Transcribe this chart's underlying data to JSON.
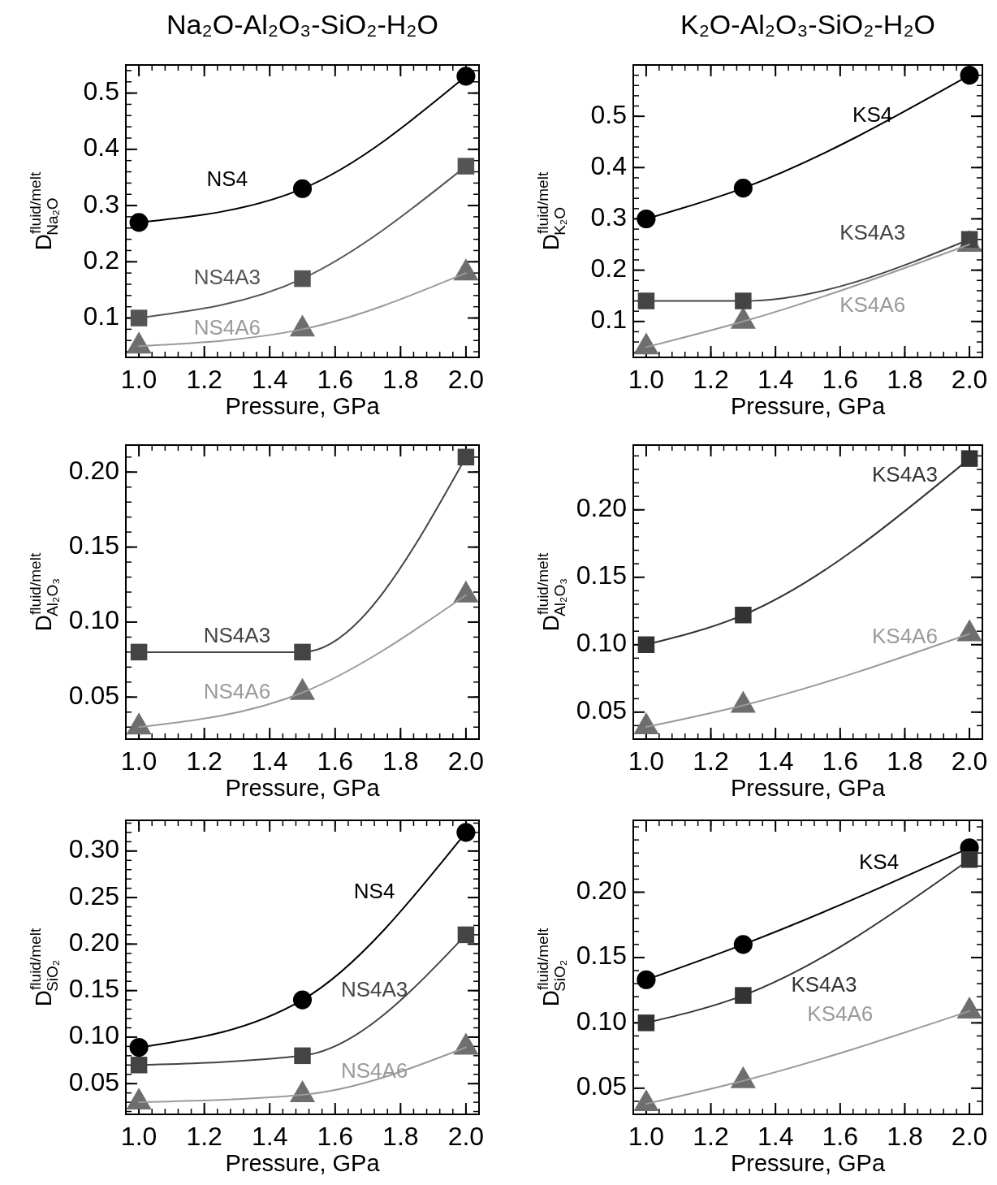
{
  "chart_data": [
    {
      "type": "line",
      "title": "Na₂O-Al₂O₃-SiO₂-H₂O",
      "xlabel": "Pressure, GPa",
      "ylabel": "D$^{fluid/melt}$$_{Na₂O}$",
      "x": [
        1.0,
        1.5,
        2.0
      ],
      "xlim": [
        0.96,
        2.04
      ],
      "xticks": [
        {
          "value": 1.0,
          "label": "1.0"
        },
        {
          "value": 1.2,
          "label": "1.2"
        },
        {
          "value": 1.4,
          "label": "1.4"
        },
        {
          "value": 1.6,
          "label": "1.6"
        },
        {
          "value": 1.8,
          "label": "1.8"
        },
        {
          "value": 2.0,
          "label": "2.0"
        }
      ],
      "ylim": [
        0.03,
        0.55
      ],
      "yticks": [
        0.1,
        0.2,
        0.3,
        0.4,
        0.5
      ],
      "series": [
        {
          "name": "NS4",
          "color": "#000000",
          "marker": "circle",
          "values": [
            0.27,
            0.33,
            0.53
          ]
        },
        {
          "name": "NS4A3",
          "color": "#555555",
          "marker": "square",
          "values": [
            0.1,
            0.17,
            0.37
          ]
        },
        {
          "name": "NS4A6",
          "color": "#9a9a9a",
          "marker": "none",
          "values": [
            0.05,
            0.08,
            0.18
          ]
        },
        {
          "type": "scatter",
          "color": "#6e6e6e",
          "marker": "triangle",
          "values": [
            0.05,
            0.08,
            0.18
          ]
        }
      ]
    },
    {
      "type": "line",
      "title": "K₂O-Al₂O₃-SiO₂-H₂O",
      "xlabel": "Pressure, GPa",
      "ylabel": "D$^{fluid/melt}$$_{K₂O}$",
      "x": [
        1.0,
        1.3,
        2.0
      ],
      "xlim": [
        0.96,
        2.04
      ],
      "xticks": [
        {
          "value": 1.0,
          "label": "1.0"
        },
        {
          "value": 1.2,
          "label": "1.2"
        },
        {
          "value": 1.4,
          "label": "1.4"
        },
        {
          "value": 1.6,
          "label": "1.6"
        },
        {
          "value": 1.8,
          "label": "1.8"
        },
        {
          "value": 2.0,
          "label": "2.0"
        }
      ],
      "ylim": [
        0.03,
        0.6
      ],
      "yticks": [
        0.1,
        0.2,
        0.3,
        0.4,
        0.5
      ],
      "series": [
        {
          "name": "KS4",
          "color": "#000000",
          "marker": "circle",
          "values": [
            0.3,
            0.36,
            0.58
          ]
        },
        {
          "name": "KS4A3",
          "color": "#444444",
          "marker": "square",
          "values": [
            0.14,
            0.14,
            0.26
          ]
        },
        {
          "name": "KS4A6",
          "color": "#9a9a9a",
          "marker": "none",
          "values": [
            0.05,
            0.1,
            0.25
          ]
        },
        {
          "type": "scatter",
          "color": "#6e6e6e",
          "marker": "triangle",
          "values": [
            0.05,
            0.1,
            0.25
          ]
        }
      ]
    },
    {
      "type": "line",
      "xlabel": "Pressure, GPa",
      "ylabel": "D$^{fluid/melt}$$_{Al₂O₃}$",
      "x": [
        1.0,
        1.5,
        2.0
      ],
      "xlim": [
        0.96,
        2.04
      ],
      "xticks": [
        {
          "value": 1.0,
          "label": "1.0"
        },
        {
          "value": 1.2,
          "label": "1.2"
        },
        {
          "value": 1.4,
          "label": "1.4"
        },
        {
          "value": 1.6,
          "label": "1.6"
        },
        {
          "value": 1.8,
          "label": "1.8"
        },
        {
          "value": 2.0,
          "label": "2.0"
        }
      ],
      "ylim": [
        0.022,
        0.218
      ],
      "yticks": [
        {
          "value": 0.05,
          "label": "0.05"
        },
        {
          "value": 0.1,
          "label": "0.10"
        },
        {
          "value": 0.15,
          "label": "0.15"
        },
        {
          "value": 0.2,
          "label": "0.20"
        }
      ],
      "series": [
        {
          "name": "NS4A3",
          "color": "#444444",
          "marker": "square",
          "values": [
            0.08,
            0.08,
            0.21
          ]
        },
        {
          "name": "NS4A6",
          "color": "#9a9a9a",
          "marker": "none",
          "values": [
            0.03,
            0.053,
            0.118
          ]
        },
        {
          "type": "scatter",
          "color": "#6e6e6e",
          "marker": "triangle",
          "values": [
            0.03,
            0.053,
            0.118
          ]
        }
      ]
    },
    {
      "type": "line",
      "xlabel": "Pressure, GPa",
      "ylabel": "D$^{fluid/melt}$$_{Al₂O₃}$",
      "x": [
        1.0,
        1.3,
        2.0
      ],
      "xlim": [
        0.96,
        2.04
      ],
      "xticks": [
        {
          "value": 1.0,
          "label": "1.0"
        },
        {
          "value": 1.2,
          "label": "1.2"
        },
        {
          "value": 1.4,
          "label": "1.4"
        },
        {
          "value": 1.6,
          "label": "1.6"
        },
        {
          "value": 1.8,
          "label": "1.8"
        },
        {
          "value": 2.0,
          "label": "2.0"
        }
      ],
      "ylim": [
        0.03,
        0.248
      ],
      "yticks": [
        {
          "value": 0.05,
          "label": "0.05"
        },
        {
          "value": 0.1,
          "label": "0.10"
        },
        {
          "value": 0.15,
          "label": "0.15"
        },
        {
          "value": 0.2,
          "label": "0.20"
        }
      ],
      "series": [
        {
          "name": "KS4A3",
          "color": "#333333",
          "marker": "square",
          "values": [
            0.1,
            0.122,
            0.238
          ]
        },
        {
          "name": "KS4A6",
          "color": "#9a9a9a",
          "marker": "none",
          "values": [
            0.039,
            0.055,
            0.108
          ]
        },
        {
          "type": "scatter",
          "color": "#6e6e6e",
          "marker": "triangle",
          "values": [
            0.039,
            0.055,
            0.108
          ]
        }
      ]
    },
    {
      "type": "line",
      "xlabel": "Pressure, GPa",
      "ylabel": "D$^{fluid/melt}$$_{SiO₂}$",
      "x": [
        1.0,
        1.5,
        2.0
      ],
      "xlim": [
        0.96,
        2.04
      ],
      "xticks": [
        {
          "value": 1.0,
          "label": "1.0"
        },
        {
          "value": 1.2,
          "label": "1.2"
        },
        {
          "value": 1.4,
          "label": "1.4"
        },
        {
          "value": 1.6,
          "label": "1.6"
        },
        {
          "value": 1.8,
          "label": "1.8"
        },
        {
          "value": 2.0,
          "label": "2.0"
        }
      ],
      "ylim": [
        0.017,
        0.333
      ],
      "yticks": [
        {
          "value": 0.05,
          "label": "0.05"
        },
        {
          "value": 0.1,
          "label": "0.10"
        },
        {
          "value": 0.15,
          "label": "0.15"
        },
        {
          "value": 0.2,
          "label": "0.20"
        },
        {
          "value": 0.25,
          "label": "0.25"
        },
        {
          "value": 0.3,
          "label": "0.30"
        }
      ],
      "series": [
        {
          "name": "NS4",
          "color": "#000000",
          "marker": "circle",
          "values": [
            0.089,
            0.14,
            0.32
          ]
        },
        {
          "name": "NS4A3",
          "color": "#444444",
          "marker": "square",
          "values": [
            0.07,
            0.08,
            0.21
          ]
        },
        {
          "name": "NS4A6",
          "color": "#9a9a9a",
          "marker": "none",
          "values": [
            0.03,
            0.038,
            0.089
          ]
        },
        {
          "type": "scatter",
          "color": "#6e6e6e",
          "marker": "triangle",
          "values": [
            0.03,
            0.038,
            0.089
          ]
        }
      ]
    },
    {
      "type": "line",
      "xlabel": "Pressure, GPa",
      "ylabel": "D$^{fluid/melt}$$_{SiO₂}$",
      "x": [
        1.0,
        1.3,
        2.0
      ],
      "xlim": [
        0.96,
        2.04
      ],
      "xticks": [
        {
          "value": 1.0,
          "label": "1.0"
        },
        {
          "value": 1.2,
          "label": "1.2"
        },
        {
          "value": 1.4,
          "label": "1.4"
        },
        {
          "value": 1.6,
          "label": "1.6"
        },
        {
          "value": 1.8,
          "label": "1.8"
        },
        {
          "value": 2.0,
          "label": "2.0"
        }
      ],
      "ylim": [
        0.03,
        0.255
      ],
      "yticks": [
        {
          "value": 0.05,
          "label": "0.05"
        },
        {
          "value": 0.1,
          "label": "0.10"
        },
        {
          "value": 0.15,
          "label": "0.15"
        },
        {
          "value": 0.2,
          "label": "0.20"
        }
      ],
      "series": [
        {
          "name": "KS4",
          "color": "#000000",
          "marker": "circle",
          "values": [
            0.133,
            0.16,
            0.234
          ]
        },
        {
          "name": "KS4A3",
          "color": "#333333",
          "marker": "square",
          "values": [
            0.1,
            0.121,
            0.225
          ]
        },
        {
          "name": "KS4A6",
          "color": "#9a9a9a",
          "marker": "none",
          "values": [
            0.038,
            0.0556,
            0.109
          ]
        },
        {
          "type": "scatter",
          "color": "#6e6e6e",
          "marker": "triangle",
          "values": [
            0.038,
            0.0556,
            0.109
          ]
        }
      ]
    }
  ]
}
